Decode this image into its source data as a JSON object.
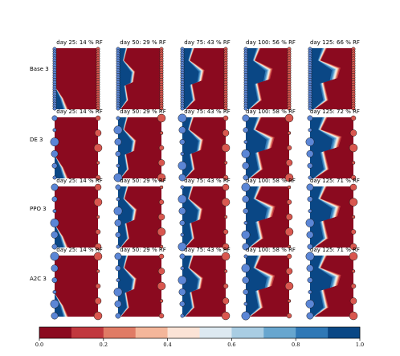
{
  "chart_data": {
    "type": "heatmap",
    "description_rows": [
      "Base 3",
      "DE 3",
      "PPO 3",
      "A2C 3"
    ],
    "columns": [
      "day 25",
      "day 50",
      "day 75",
      "day 100",
      "day 125"
    ],
    "panel_titles": [
      [
        "day 25: 14 % RF",
        "day 50: 29 % RF",
        "day 75: 43 % RF",
        "day 100: 56 % RF",
        "day 125: 66 % RF"
      ],
      [
        "day 25: 14 % RF",
        "day 50: 29 % RF",
        "day 75: 43 % RF",
        "day 100: 58 % RF",
        "day 125: 72 % RF"
      ],
      [
        "day 25: 14 % RF",
        "day 50: 29 % RF",
        "day 75: 43 % RF",
        "day 100: 58 % RF",
        "day 125: 71 % RF"
      ],
      [
        "day 25: 14 % RF",
        "day 50: 29 % RF",
        "day 75: 43 % RF",
        "day 100: 58 % RF",
        "day 125: 71 % RF"
      ]
    ],
    "recovery_factor_percent": [
      [
        14,
        29,
        43,
        56,
        66
      ],
      [
        14,
        29,
        43,
        58,
        72
      ],
      [
        14,
        29,
        43,
        58,
        71
      ],
      [
        14,
        29,
        43,
        58,
        71
      ]
    ],
    "colorbar": {
      "min": 0.0,
      "max": 1.0,
      "levels": 10,
      "tick_values": [
        0.0,
        0.2,
        0.4,
        0.6,
        0.8,
        1.0
      ],
      "tick_labels": [
        "0.0",
        "0.2",
        "0.4",
        "0.6",
        "0.8",
        "1.0"
      ],
      "colors": [
        "#8b0a1f",
        "#c1383e",
        "#e07b65",
        "#f4b69a",
        "#fbe3d6",
        "#dde9f1",
        "#a9cde3",
        "#67a6cf",
        "#2f78b6",
        "#0a4785"
      ]
    }
  }
}
